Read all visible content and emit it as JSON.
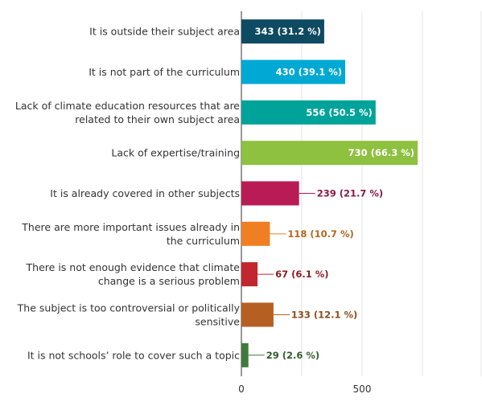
{
  "chart_data": {
    "type": "bar",
    "orientation": "horizontal",
    "categories": [
      [
        "It is outside their subject area"
      ],
      [
        "It is not part of the curriculum"
      ],
      [
        "Lack of climate education resources that are",
        "related to their own subject area"
      ],
      [
        "Lack of expertise/training"
      ],
      [
        "It is already covered in other subjects"
      ],
      [
        "There are more important issues already in",
        "the curriculum"
      ],
      [
        "There is not enough evidence that climate",
        "change is a serious problem"
      ],
      [
        "The subject is too controversial or politically",
        "sensitive"
      ],
      [
        "It is not schools’ role to cover such a topic"
      ]
    ],
    "values": [
      343,
      430,
      556,
      730,
      239,
      118,
      67,
      133,
      29
    ],
    "data_labels": [
      "343 (31.2 %)",
      "430 (39.1 %)",
      "556 (50.5 %)",
      "730 (66.3 %)",
      "239 (21.7 %)",
      "118 (10.7 %)",
      "67 (6.1 %)",
      "133 (12.1 %)",
      "29 (2.6 %)"
    ],
    "label_inside": [
      true,
      true,
      true,
      true,
      false,
      false,
      false,
      false,
      false
    ],
    "colors": [
      "#0e4a62",
      "#00a9d4",
      "#00a399",
      "#8dc13f",
      "#b91c55",
      "#ef7f22",
      "#c1272d",
      "#b65f22",
      "#3f7a3a"
    ],
    "label_colors": [
      "#ffffff",
      "#ffffff",
      "#ffffff",
      "#ffffff",
      "#8a1a44",
      "#b6651c",
      "#8c1d22",
      "#8e4d1c",
      "#2f5e2b"
    ],
    "xticks": [
      0,
      500
    ],
    "xlim": [
      0,
      1000
    ],
    "grid": true,
    "title": "",
    "xlabel": "",
    "ylabel": ""
  }
}
